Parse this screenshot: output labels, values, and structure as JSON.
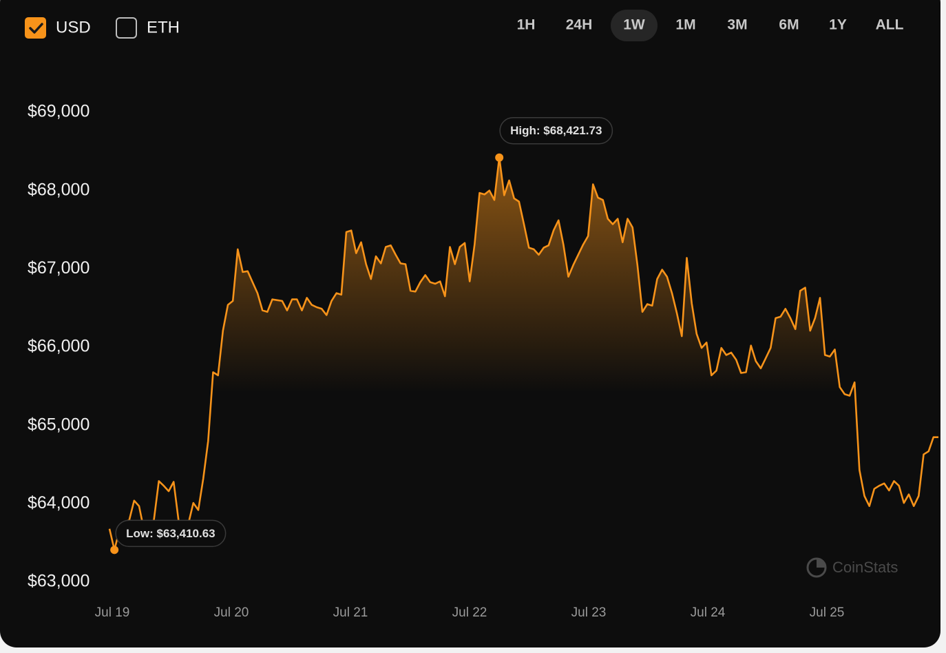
{
  "ui": {
    "currencies": [
      {
        "label": "USD",
        "checked": true
      },
      {
        "label": "ETH",
        "checked": false
      }
    ],
    "ranges": [
      "1H",
      "24H",
      "1W",
      "1M",
      "3M",
      "6M",
      "1Y",
      "ALL"
    ],
    "active_range": "1W",
    "watermark": "CoinStats"
  },
  "chart_data": {
    "type": "line",
    "color": "#f7931a",
    "ylim": [
      62780,
      69730
    ],
    "yticks": [
      {
        "value": 63000,
        "label": "$63,000"
      },
      {
        "value": 64000,
        "label": "$64,000"
      },
      {
        "value": 65000,
        "label": "$65,000"
      },
      {
        "value": 66000,
        "label": "$66,000"
      },
      {
        "value": 67000,
        "label": "$67,000"
      },
      {
        "value": 68000,
        "label": "$68,000"
      },
      {
        "value": 69000,
        "label": "$69,000"
      }
    ],
    "xticks": [
      "Jul 19",
      "Jul 20",
      "Jul 21",
      "Jul 22",
      "Jul 23",
      "Jul 24",
      "Jul 25"
    ],
    "annotations": [
      {
        "label": "Low: $63,410.63",
        "value": 63410.63
      },
      {
        "label": "High: $68,421.73",
        "value": 68421.73
      }
    ],
    "values": [
      63680,
      63410.63,
      63660,
      63770,
      63790,
      64040,
      63970,
      63660,
      63750,
      63790,
      64290,
      64230,
      64160,
      64280,
      63790,
      63700,
      63750,
      64010,
      63920,
      64320,
      64800,
      65680,
      65640,
      66210,
      66540,
      66590,
      67250,
      66960,
      66970,
      66830,
      66690,
      66470,
      66450,
      66610,
      66600,
      66590,
      66470,
      66610,
      66610,
      66470,
      66630,
      66540,
      66510,
      66490,
      66410,
      66590,
      66690,
      66670,
      67470,
      67490,
      67200,
      67340,
      67060,
      66870,
      67160,
      67070,
      67280,
      67300,
      67180,
      67070,
      67060,
      66720,
      66710,
      66830,
      66920,
      66830,
      66810,
      66840,
      66650,
      67280,
      67060,
      67280,
      67330,
      66840,
      67310,
      67970,
      67950,
      68000,
      67880,
      68421.73,
      67940,
      68130,
      67900,
      67860,
      67570,
      67270,
      67250,
      67180,
      67270,
      67300,
      67490,
      67620,
      67310,
      66900,
      67050,
      67180,
      67310,
      67420,
      68080,
      67910,
      67880,
      67640,
      67570,
      67640,
      67340,
      67640,
      67530,
      67050,
      66450,
      66550,
      66530,
      66870,
      66990,
      66900,
      66690,
      66430,
      66140,
      67140,
      66560,
      66170,
      65990,
      66060,
      65640,
      65700,
      65990,
      65900,
      65930,
      65840,
      65670,
      65680,
      66020,
      65820,
      65730,
      65860,
      65990,
      66370,
      66390,
      66490,
      66370,
      66230,
      66720,
      66760,
      66210,
      66370,
      66630,
      65900,
      65880,
      65970,
      65490,
      65400,
      65380,
      65550,
      64430,
      64100,
      63970,
      64190,
      64230,
      64260,
      64170,
      64290,
      64230,
      64010,
      64120,
      63970,
      64100,
      64630,
      64670,
      64850,
      64850
    ]
  }
}
